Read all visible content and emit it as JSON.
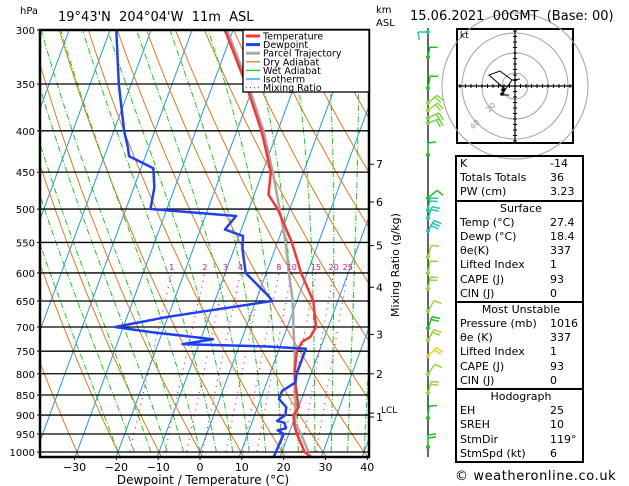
{
  "header": {
    "pressure_unit": "hPa",
    "location": "19°43'N  204°04'W  11m  ASL",
    "height_unit_line1": "km",
    "height_unit_line2": "ASL",
    "datetime": "15.06.2021  00GMT  (Base: 00)"
  },
  "colors": {
    "temperature": "#ff3333",
    "dewpoint": "#1f3ff5",
    "parcel": "#a8a8a8",
    "dry_adiabat": "#e07a1a",
    "wet_adiabat": "#1ec81e",
    "isotherm": "#1e9be6",
    "mixing_ratio": "#e0107a"
  },
  "chart_data": {
    "type": "line",
    "title": "19°43'N  204°04'W  11m  ASL",
    "xlabel": "Dewpoint / Temperature (°C)",
    "ylabel": "hPa",
    "y2label": "Mixing Ratio (g/kg)",
    "xlim": [
      -40,
      40
    ],
    "ylim": [
      1050,
      300
    ],
    "x_ticks": [
      "-30",
      "-20",
      "-10",
      "0",
      "10",
      "20",
      "30",
      "40"
    ],
    "x_tick_values": [
      -30,
      -20,
      -10,
      0,
      10,
      20,
      30,
      40
    ],
    "pressure_levels": [
      300,
      350,
      400,
      450,
      500,
      550,
      600,
      650,
      700,
      750,
      800,
      850,
      900,
      950,
      1000
    ],
    "pressure_labels": [
      "300",
      "350",
      "400",
      "450",
      "500",
      "550",
      "600",
      "650",
      "700",
      "750",
      "800",
      "850",
      "900",
      "950",
      "1000"
    ],
    "height_km_ticks": [
      {
        "label": "7",
        "p": 440
      },
      {
        "label": "6",
        "p": 490
      },
      {
        "label": "5",
        "p": 555
      },
      {
        "label": "4",
        "p": 625
      },
      {
        "label": "3",
        "p": 715
      },
      {
        "label": "2",
        "p": 800
      },
      {
        "label": "1",
        "p": 905
      }
    ],
    "lcl": {
      "label": "LCL",
      "p": 895
    },
    "mixing_ratio_labels": [
      "1",
      "2",
      "3",
      "4",
      "8",
      "10",
      "15",
      "20",
      "25"
    ],
    "mixing_ratio_values": [
      1,
      2,
      3,
      4,
      8,
      10,
      15,
      20,
      25
    ],
    "legend": [
      "Temperature",
      "Dewpoint",
      "Parcel Trajectory",
      "Dry Adiabat",
      "Wet Adiabat",
      "Isotherm",
      "Mixing Ratio"
    ],
    "legend_position": "top-right",
    "series": [
      {
        "name": "Temperature",
        "points": [
          [
            1013,
            27.4
          ],
          [
            1000,
            25.5
          ],
          [
            950,
            22.0
          ],
          [
            925,
            20.5
          ],
          [
            900,
            19.5
          ],
          [
            880,
            20.0
          ],
          [
            850,
            18.5
          ],
          [
            800,
            16.0
          ],
          [
            750,
            14.5
          ],
          [
            730,
            15.0
          ],
          [
            720,
            16.5
          ],
          [
            700,
            17.0
          ],
          [
            650,
            14.0
          ],
          [
            600,
            8.5
          ],
          [
            550,
            3.5
          ],
          [
            500,
            -3.0
          ],
          [
            480,
            -6.5
          ],
          [
            450,
            -8.0
          ],
          [
            420,
            -11.5
          ],
          [
            400,
            -14.0
          ],
          [
            350,
            -22.0
          ],
          [
            300,
            -32.0
          ]
        ]
      },
      {
        "name": "Dewpoint",
        "points": [
          [
            1013,
            18.4
          ],
          [
            1000,
            18.5
          ],
          [
            950,
            18.8
          ],
          [
            940,
            17.0
          ],
          [
            935,
            18.8
          ],
          [
            920,
            18.0
          ],
          [
            915,
            16.0
          ],
          [
            910,
            16.5
          ],
          [
            900,
            17.5
          ],
          [
            880,
            17.0
          ],
          [
            860,
            14.5
          ],
          [
            840,
            14.5
          ],
          [
            820,
            17.0
          ],
          [
            800,
            16.5
          ],
          [
            780,
            16.5
          ],
          [
            745,
            16.5
          ],
          [
            740,
            7.0
          ],
          [
            735,
            -14.0
          ],
          [
            725,
            -7.0
          ],
          [
            710,
            -23.0
          ],
          [
            700,
            -32.0
          ],
          [
            680,
            -20.0
          ],
          [
            650,
            4.0
          ],
          [
            640,
            2.5
          ],
          [
            600,
            -5.0
          ],
          [
            560,
            -8.0
          ],
          [
            540,
            -9.0
          ],
          [
            530,
            -14.0
          ],
          [
            510,
            -12.5
          ],
          [
            500,
            -34.0
          ],
          [
            470,
            -35.0
          ],
          [
            445,
            -37.0
          ],
          [
            430,
            -44.0
          ],
          [
            420,
            -45.0
          ],
          [
            400,
            -47.5
          ],
          [
            350,
            -53.0
          ],
          [
            300,
            -58.5
          ]
        ]
      },
      {
        "name": "Parcel Trajectory",
        "points": [
          [
            1000,
            26.5
          ],
          [
            950,
            23.0
          ],
          [
            920,
            20.5
          ],
          [
            900,
            20.0
          ],
          [
            850,
            18.0
          ],
          [
            800,
            16.0
          ],
          [
            750,
            14.0
          ],
          [
            700,
            11.5
          ],
          [
            650,
            9.0
          ],
          [
            600,
            5.5
          ],
          [
            550,
            2.0
          ],
          [
            500,
            -2.5
          ],
          [
            450,
            -7.5
          ],
          [
            400,
            -13.5
          ],
          [
            350,
            -21.5
          ],
          [
            300,
            -31.5
          ]
        ]
      }
    ]
  },
  "hodograph": {
    "unit_label": "kt",
    "ring_labels": [
      "20",
      "40"
    ]
  },
  "indices": {
    "top": [
      {
        "label": "K",
        "value": "-14"
      },
      {
        "label": "Totals Totals",
        "value": "36"
      },
      {
        "label": "PW (cm)",
        "value": "3.23"
      }
    ],
    "surface": {
      "title": "Surface",
      "rows": [
        {
          "label": "Temp (°C)",
          "value": "27.4"
        },
        {
          "label": "Dewp (°C)",
          "value": "18.4"
        },
        {
          "label": "θe(K)",
          "value": "337"
        },
        {
          "label": "Lifted Index",
          "value": "1"
        },
        {
          "label": "CAPE (J)",
          "value": "93"
        },
        {
          "label": "CIN (J)",
          "value": "0"
        }
      ]
    },
    "most_unstable": {
      "title": "Most Unstable",
      "rows": [
        {
          "label": "Pressure (mb)",
          "value": "1016"
        },
        {
          "label": "θe (K)",
          "value": "337"
        },
        {
          "label": "Lifted Index",
          "value": "1"
        },
        {
          "label": "CAPE (J)",
          "value": "93"
        },
        {
          "label": "CIN (J)",
          "value": "0"
        }
      ]
    },
    "hodograph": {
      "title": "Hodograph",
      "rows": [
        {
          "label": "EH",
          "value": "25"
        },
        {
          "label": "SREH",
          "value": "10"
        },
        {
          "label": "StmDir",
          "value": "119°"
        },
        {
          "label": "StmSpd (kt)",
          "value": "6"
        }
      ]
    }
  },
  "footer": {
    "copyright": "© weatheronline.co.uk"
  }
}
